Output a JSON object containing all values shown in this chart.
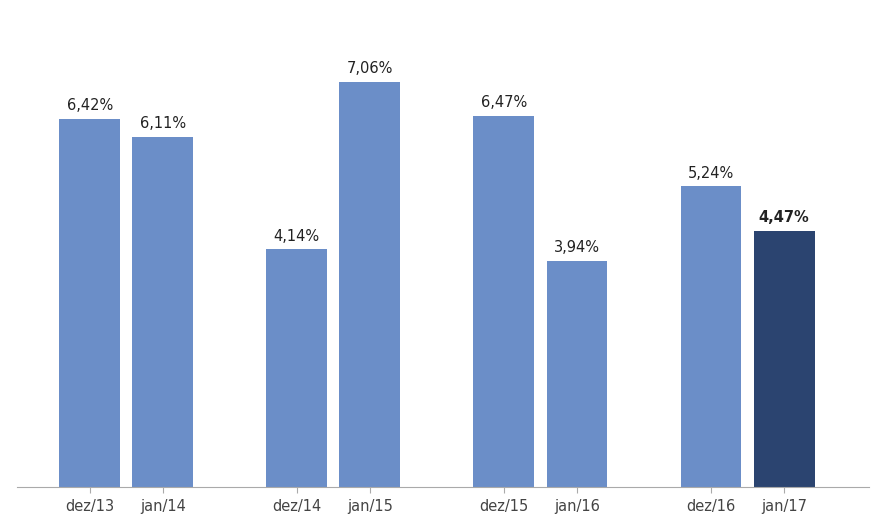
{
  "categories": [
    "dez/13",
    "jan/14",
    "dez/14",
    "jan/15",
    "dez/15",
    "jan/16",
    "dez/16",
    "jan/17"
  ],
  "values": [
    6.42,
    6.11,
    4.14,
    7.06,
    6.47,
    3.94,
    5.24,
    4.47
  ],
  "labels": [
    "6,42%",
    "6,11%",
    "4,14%",
    "7,06%",
    "6,47%",
    "3,94%",
    "5,24%",
    "4,47%"
  ],
  "bar_colors": [
    "#6b8ec8",
    "#6b8ec8",
    "#6b8ec8",
    "#6b8ec8",
    "#6b8ec8",
    "#6b8ec8",
    "#6b8ec8",
    "#2b4470"
  ],
  "x_positions": [
    0.5,
    1.1,
    2.2,
    2.8,
    3.9,
    4.5,
    5.6,
    6.2
  ],
  "ylim": [
    0,
    8.2
  ],
  "xlim": [
    -0.1,
    6.9
  ],
  "background_color": "#ffffff",
  "label_fontsize": 10.5,
  "tick_fontsize": 10.5,
  "bar_width": 0.5
}
